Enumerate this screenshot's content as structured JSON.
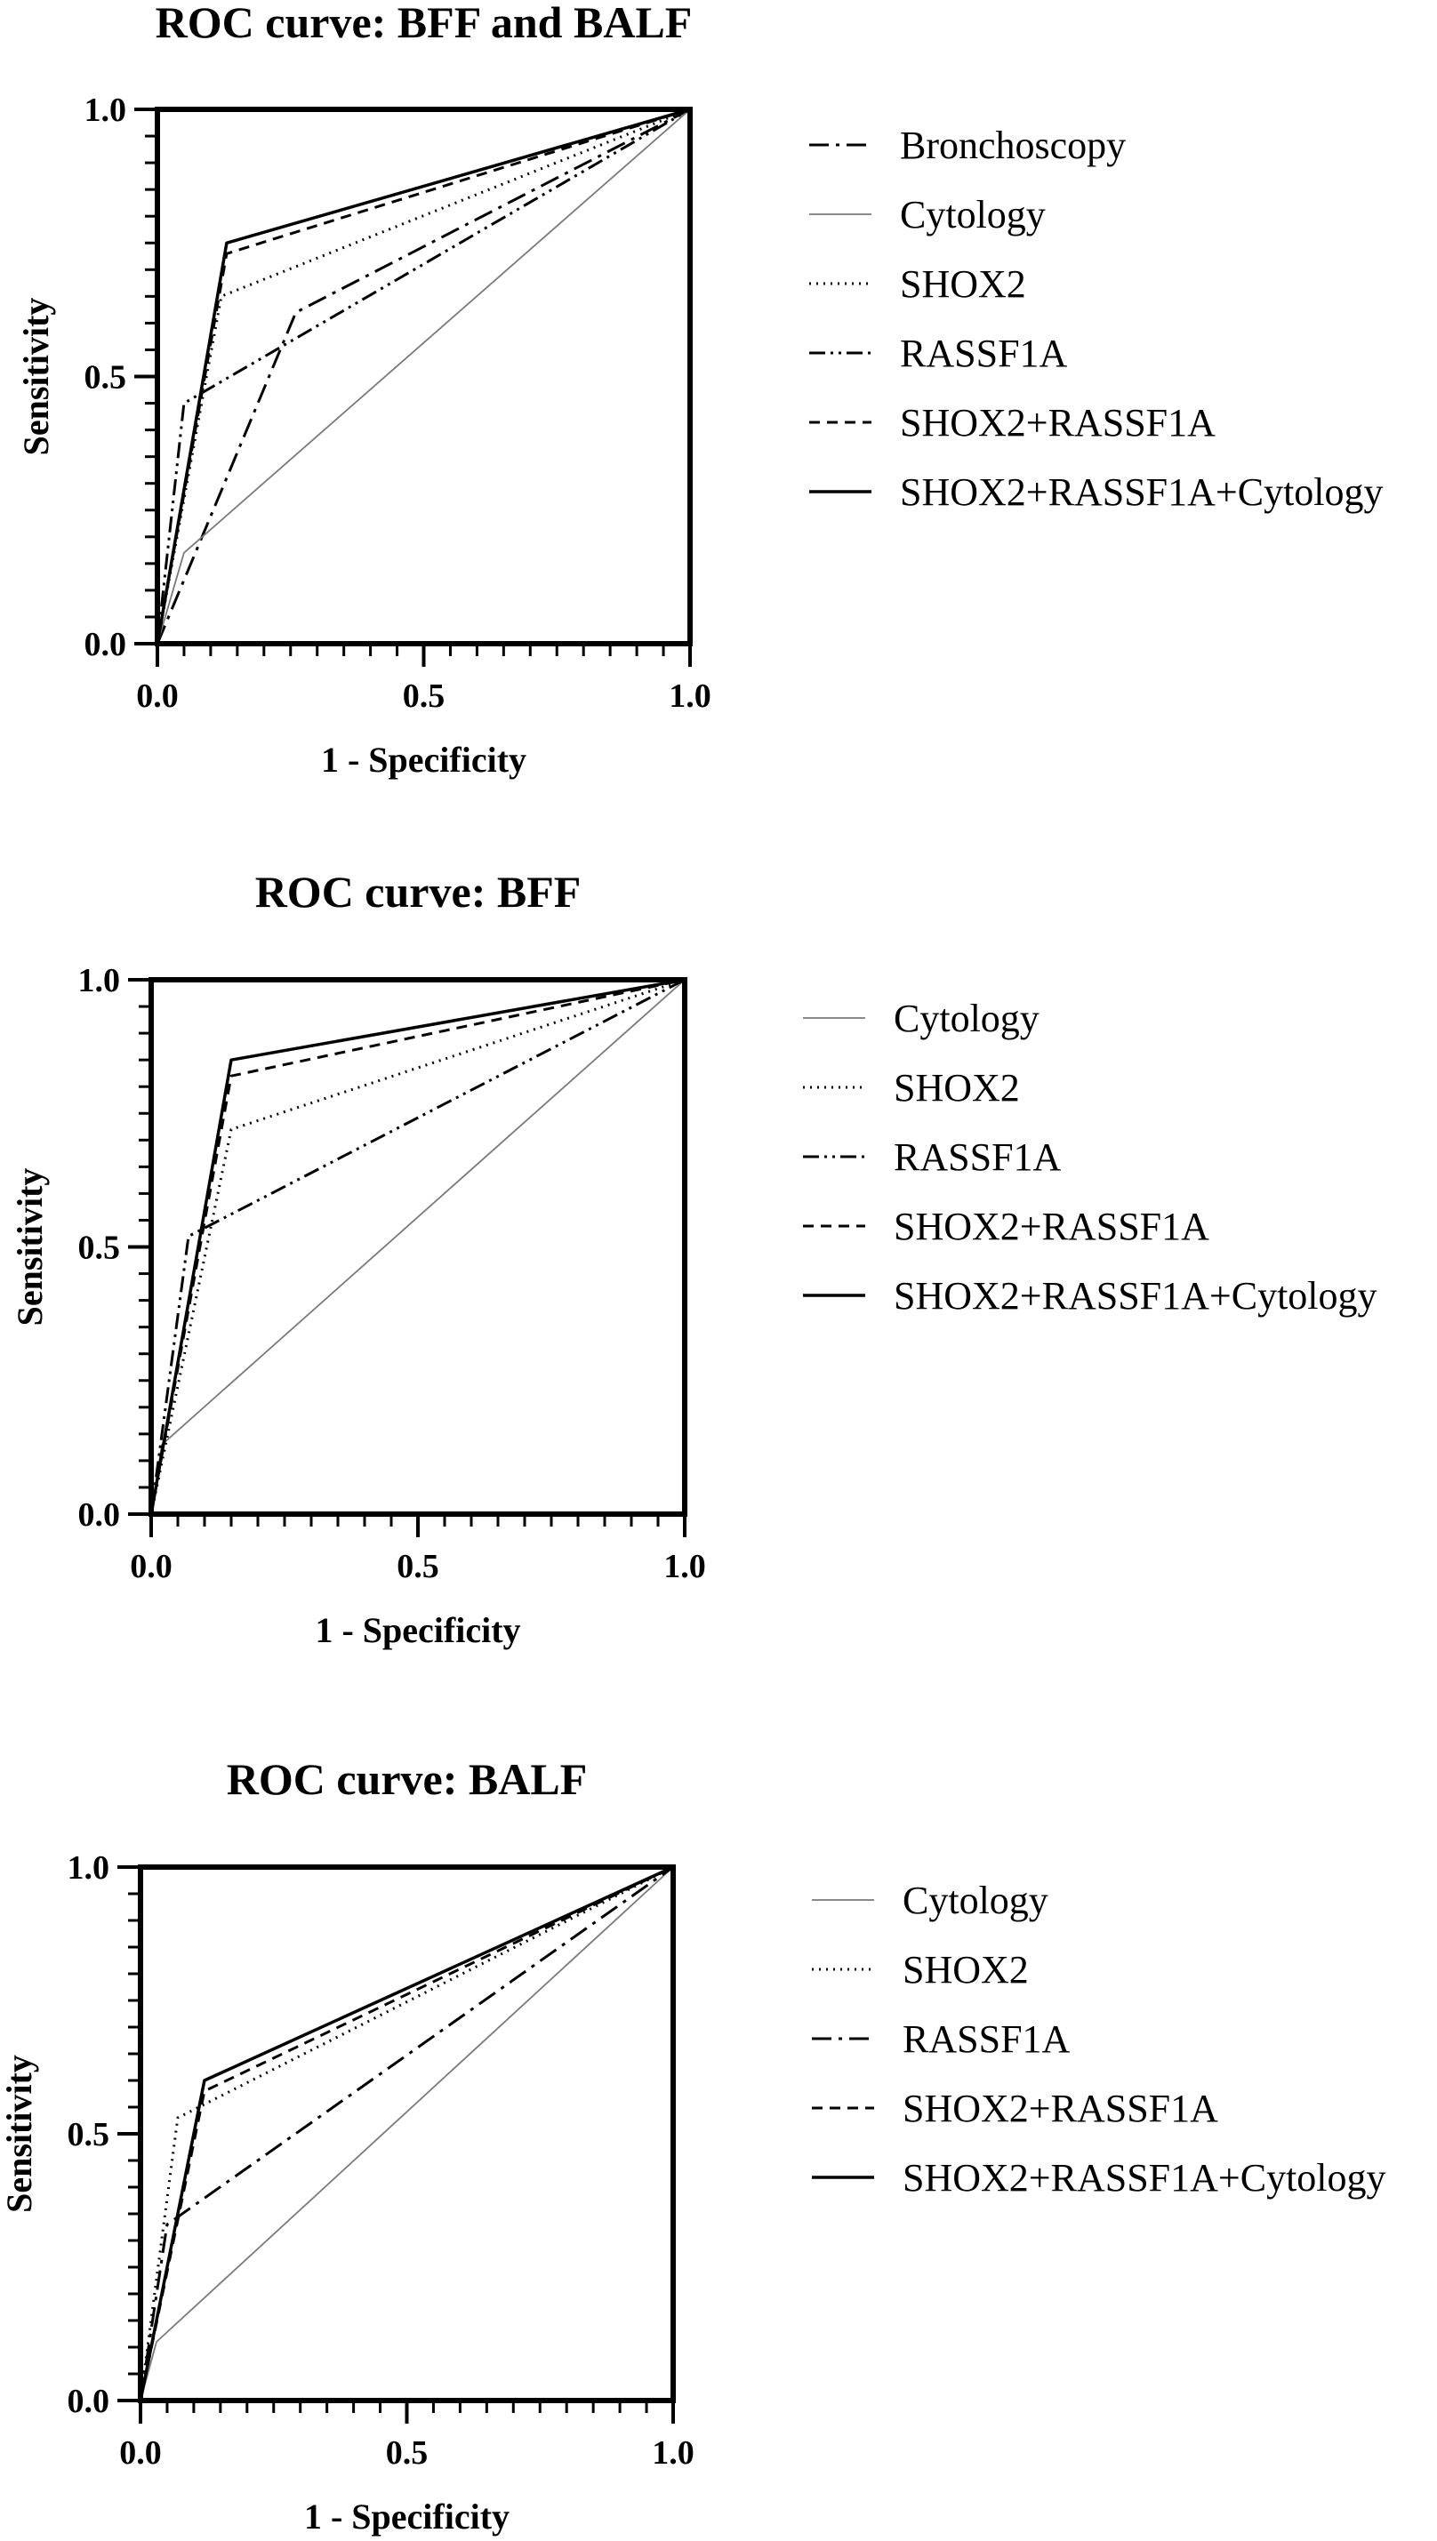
{
  "chart_data": [
    {
      "type": "line",
      "title": "ROC curve: BFF and BALF",
      "xlabel": "1 - Specificity",
      "ylabel": "Sensitivity",
      "xlim": [
        0,
        1
      ],
      "ylim": [
        0,
        1
      ],
      "x_ticks": [
        "0.0",
        "0.5",
        "1.0"
      ],
      "y_ticks": [
        "0.0",
        "0.5",
        "1.0"
      ],
      "grid": false,
      "legend_position": "right",
      "series": [
        {
          "name": "Bronchoscopy",
          "style": "dashdot",
          "points": [
            [
              0,
              0
            ],
            [
              0.26,
              0.62
            ],
            [
              1,
              1
            ]
          ]
        },
        {
          "name": "Cytology",
          "style": "solid-thin",
          "points": [
            [
              0,
              0
            ],
            [
              0.05,
              0.17
            ],
            [
              1,
              1
            ]
          ]
        },
        {
          "name": "SHOX2",
          "style": "dotted",
          "points": [
            [
              0,
              0
            ],
            [
              0.12,
              0.65
            ],
            [
              1,
              1
            ]
          ]
        },
        {
          "name": "RASSF1A",
          "style": "dashdotdot",
          "points": [
            [
              0,
              0
            ],
            [
              0.05,
              0.45
            ],
            [
              1,
              1
            ]
          ]
        },
        {
          "name": "SHOX2+RASSF1A",
          "style": "dashed",
          "points": [
            [
              0,
              0
            ],
            [
              0.13,
              0.73
            ],
            [
              1,
              1
            ]
          ]
        },
        {
          "name": "SHOX2+RASSF1A+Cytology",
          "style": "solid",
          "points": [
            [
              0,
              0
            ],
            [
              0.13,
              0.75
            ],
            [
              1,
              1
            ]
          ]
        }
      ]
    },
    {
      "type": "line",
      "title": "ROC curve: BFF",
      "xlabel": "1 - Specificity",
      "ylabel": "Sensitivity",
      "xlim": [
        0,
        1
      ],
      "ylim": [
        0,
        1
      ],
      "x_ticks": [
        "0.0",
        "0.5",
        "1.0"
      ],
      "y_ticks": [
        "0.0",
        "0.5",
        "1.0"
      ],
      "grid": false,
      "legend_position": "right",
      "series": [
        {
          "name": "Cytology",
          "style": "solid-thin",
          "points": [
            [
              0,
              0
            ],
            [
              0.02,
              0.13
            ],
            [
              1,
              1
            ]
          ]
        },
        {
          "name": "SHOX2",
          "style": "dotted",
          "points": [
            [
              0,
              0
            ],
            [
              0.15,
              0.72
            ],
            [
              1,
              1
            ]
          ]
        },
        {
          "name": "RASSF1A",
          "style": "dashdotdot",
          "points": [
            [
              0,
              0
            ],
            [
              0.07,
              0.52
            ],
            [
              1,
              1
            ]
          ]
        },
        {
          "name": "SHOX2+RASSF1A",
          "style": "dashed",
          "points": [
            [
              0,
              0
            ],
            [
              0.15,
              0.82
            ],
            [
              1,
              1
            ]
          ]
        },
        {
          "name": "SHOX2+RASSF1A+Cytology",
          "style": "solid",
          "points": [
            [
              0,
              0
            ],
            [
              0.15,
              0.85
            ],
            [
              1,
              1
            ]
          ]
        }
      ]
    },
    {
      "type": "line",
      "title": "ROC curve: BALF",
      "xlabel": "1 - Specificity",
      "ylabel": "Sensitivity",
      "xlim": [
        0,
        1
      ],
      "ylim": [
        0,
        1
      ],
      "x_ticks": [
        "0.0",
        "0.5",
        "1.0"
      ],
      "y_ticks": [
        "0.0",
        "0.5",
        "1.0"
      ],
      "grid": false,
      "legend_position": "right",
      "series": [
        {
          "name": "Cytology",
          "style": "solid-thin",
          "points": [
            [
              0,
              0
            ],
            [
              0.03,
              0.11
            ],
            [
              1,
              1
            ]
          ]
        },
        {
          "name": "SHOX2",
          "style": "dotted",
          "points": [
            [
              0,
              0
            ],
            [
              0.07,
              0.53
            ],
            [
              1,
              1
            ]
          ]
        },
        {
          "name": "RASSF1A",
          "style": "dashdot",
          "points": [
            [
              0,
              0
            ],
            [
              0.05,
              0.33
            ],
            [
              1,
              1
            ]
          ]
        },
        {
          "name": "SHOX2+RASSF1A",
          "style": "dashed",
          "points": [
            [
              0,
              0
            ],
            [
              0.12,
              0.58
            ],
            [
              1,
              1
            ]
          ]
        },
        {
          "name": "SHOX2+RASSF1A+Cytology",
          "style": "solid",
          "points": [
            [
              0,
              0
            ],
            [
              0.12,
              0.6
            ],
            [
              1,
              1
            ]
          ]
        }
      ]
    }
  ]
}
